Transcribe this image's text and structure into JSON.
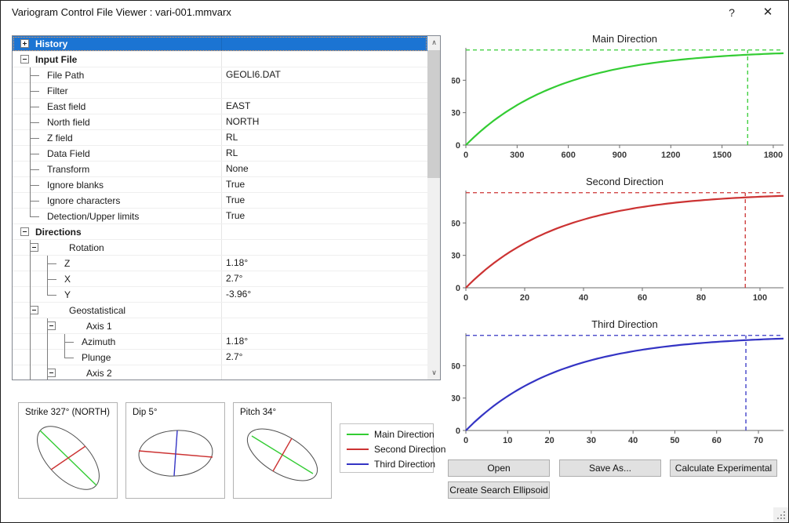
{
  "window": {
    "title": "Variogram Control File Viewer : vari-001.mmvarx",
    "help_label": "?",
    "close_label": "✕"
  },
  "colors": {
    "main": "#33cc33",
    "second": "#cc3333",
    "third": "#3434c4",
    "axis": "#6b6b6b",
    "selection": "#1b74d3"
  },
  "tree": {
    "rows": [
      {
        "kind": "section",
        "expand": "+",
        "prefix": [],
        "label": "History",
        "value": "",
        "selected": true
      },
      {
        "kind": "section",
        "expand": "-",
        "prefix": [],
        "label": "Input File",
        "value": ""
      },
      {
        "kind": "leaf",
        "prefix": [
          "b"
        ],
        "label": "File Path",
        "value": "GEOLI6.DAT"
      },
      {
        "kind": "leaf",
        "prefix": [
          "b"
        ],
        "label": "Filter",
        "value": ""
      },
      {
        "kind": "leaf",
        "prefix": [
          "b"
        ],
        "label": "East field",
        "value": "EAST"
      },
      {
        "kind": "leaf",
        "prefix": [
          "b"
        ],
        "label": "North field",
        "value": "NORTH"
      },
      {
        "kind": "leaf",
        "prefix": [
          "b"
        ],
        "label": "Z field",
        "value": "RL"
      },
      {
        "kind": "leaf",
        "prefix": [
          "b"
        ],
        "label": "Data Field",
        "value": "RL"
      },
      {
        "kind": "leaf",
        "prefix": [
          "b"
        ],
        "label": "Transform",
        "value": "None"
      },
      {
        "kind": "leaf",
        "prefix": [
          "b"
        ],
        "label": "Ignore blanks",
        "value": "True"
      },
      {
        "kind": "leaf",
        "prefix": [
          "b"
        ],
        "label": "Ignore characters",
        "value": "True"
      },
      {
        "kind": "leaf",
        "prefix": [
          "e"
        ],
        "label": "Detection/Upper limits",
        "value": "True"
      },
      {
        "kind": "section",
        "expand": "-",
        "prefix": [],
        "label": "Directions",
        "value": ""
      },
      {
        "kind": "group",
        "expand": "-",
        "prefix": [
          "g"
        ],
        "label": "Rotation",
        "value": ""
      },
      {
        "kind": "leaf",
        "prefix": [
          "v",
          "b"
        ],
        "label": "Z",
        "value": "1.18°"
      },
      {
        "kind": "leaf",
        "prefix": [
          "v",
          "b"
        ],
        "label": "X",
        "value": "2.7°"
      },
      {
        "kind": "leaf",
        "prefix": [
          "v",
          "e"
        ],
        "label": "Y",
        "value": "-3.96°"
      },
      {
        "kind": "group",
        "expand": "-",
        "prefix": [
          "g"
        ],
        "label": "Geostatistical",
        "value": ""
      },
      {
        "kind": "group",
        "expand": "-",
        "prefix": [
          "v",
          "g"
        ],
        "label": "Axis 1",
        "value": ""
      },
      {
        "kind": "leaf",
        "prefix": [
          "v",
          "v",
          "b"
        ],
        "label": "Azimuth",
        "value": "1.18°"
      },
      {
        "kind": "leaf",
        "prefix": [
          "v",
          "v",
          "e"
        ],
        "label": "Plunge",
        "value": "2.7°"
      },
      {
        "kind": "group",
        "expand": "-",
        "prefix": [
          "v",
          "g"
        ],
        "label": "Axis 2",
        "value": ""
      }
    ]
  },
  "ellipse_panels": [
    {
      "label": "Strike 327° (NORTH)",
      "major_color_key": "main",
      "minor_color_key": "second"
    },
    {
      "label": "Dip 5°",
      "major_color_key": "second",
      "minor_color_key": "third"
    },
    {
      "label": "Pitch 34°",
      "major_color_key": "main",
      "minor_color_key": "second"
    }
  ],
  "legend": {
    "items": [
      {
        "label": "Main Direction",
        "color_key": "main"
      },
      {
        "label": "Second Direction",
        "color_key": "second"
      },
      {
        "label": "Third Direction",
        "color_key": "third"
      }
    ]
  },
  "buttons": {
    "open": "Open",
    "save_as": "Save As...",
    "calculate_experimental": "Calculate Experimental",
    "create_search_ellipsoid": "Create Search Ellipsoid"
  },
  "chart_data": [
    {
      "type": "line",
      "title": "Main Direction",
      "color_key": "main",
      "model": "variogram curve γ(h)=sill·(1−exp(−3h/range)) rising from 0 to plateau",
      "xlim": [
        0,
        1860
      ],
      "ylim": [
        0,
        90
      ],
      "x_ticks": [
        0,
        300,
        600,
        900,
        1200,
        1500,
        1800
      ],
      "y_ticks": [
        0,
        30,
        60
      ],
      "sill": 88,
      "range": 1650,
      "dashed_lines": {
        "horizontal_sill": 88,
        "vertical_range": 1650
      },
      "grid": false,
      "legend_position": "none"
    },
    {
      "type": "line",
      "title": "Second Direction",
      "color_key": "second",
      "model": "variogram curve γ(h)=sill·(1−exp(−3h/range)) rising from 0 to plateau",
      "xlim": [
        0,
        108
      ],
      "ylim": [
        0,
        90
      ],
      "x_ticks": [
        0,
        20,
        40,
        60,
        80,
        100
      ],
      "y_ticks": [
        0,
        30,
        60
      ],
      "sill": 88,
      "range": 95,
      "dashed_lines": {
        "horizontal_sill": 88,
        "vertical_range": 95
      },
      "grid": false,
      "legend_position": "none"
    },
    {
      "type": "line",
      "title": "Third Direction",
      "color_key": "third",
      "model": "variogram curve γ(h)=sill·(1−exp(−3h/range)) rising from 0 to plateau",
      "xlim": [
        0,
        76
      ],
      "ylim": [
        0,
        90
      ],
      "x_ticks": [
        0,
        10,
        20,
        30,
        40,
        50,
        60,
        70
      ],
      "y_ticks": [
        0,
        30,
        60
      ],
      "sill": 88,
      "range": 67,
      "dashed_lines": {
        "horizontal_sill": 88,
        "vertical_range": 67
      },
      "grid": false,
      "legend_position": "none"
    }
  ]
}
